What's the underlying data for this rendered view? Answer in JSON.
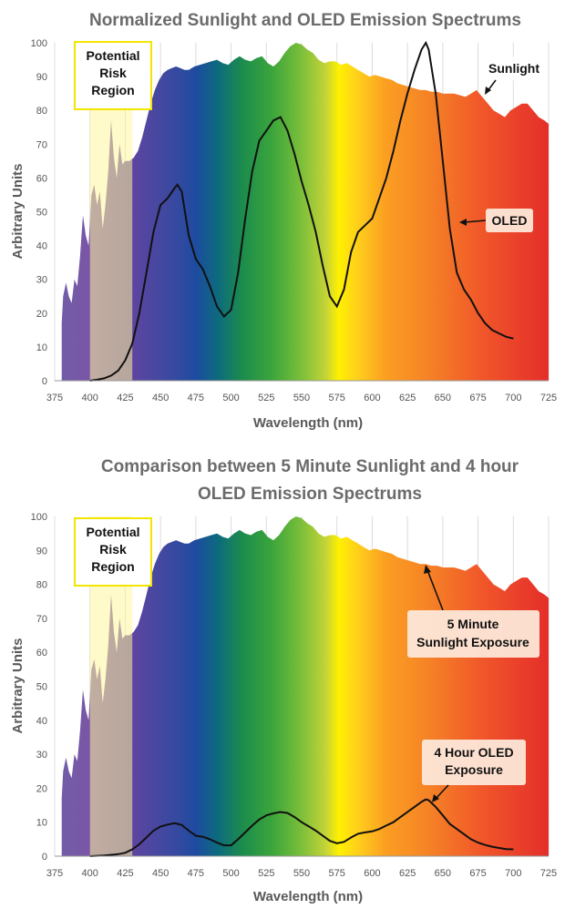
{
  "chart_data": [
    {
      "type": "area",
      "title": "Normalized Sunlight and OLED Emission Spectrums",
      "xlabel": "Wavelength (nm)",
      "ylabel": "Arbitrary Units",
      "xlim": [
        375,
        725
      ],
      "ylim": [
        0,
        100
      ],
      "xticks": [
        375,
        400,
        425,
        450,
        475,
        500,
        525,
        550,
        575,
        600,
        625,
        650,
        675,
        700,
        725
      ],
      "yticks": [
        0,
        10,
        20,
        30,
        40,
        50,
        60,
        70,
        80,
        90,
        100
      ],
      "grid": "vertical",
      "region_label": "Potential Risk Region",
      "region": [
        400,
        430
      ],
      "series": [
        {
          "name": "Sunlight",
          "x": [
            380,
            381,
            383,
            385,
            387,
            389,
            391,
            393,
            395,
            397,
            399,
            401,
            403,
            405,
            407,
            409,
            411,
            413,
            415,
            417,
            419,
            421,
            423,
            425,
            428,
            431,
            434,
            437,
            440,
            443,
            446,
            449,
            452,
            455,
            458,
            461,
            464,
            467,
            470,
            474,
            478,
            482,
            486,
            490,
            494,
            498,
            502,
            506,
            510,
            514,
            518,
            522,
            526,
            530,
            534,
            538,
            542,
            546,
            550,
            554,
            558,
            562,
            566,
            570,
            574,
            578,
            582,
            586,
            590,
            594,
            598,
            602,
            606,
            610,
            614,
            618,
            622,
            626,
            630,
            634,
            638,
            642,
            646,
            650,
            654,
            658,
            662,
            666,
            670,
            674,
            678,
            682,
            686,
            690,
            694,
            698,
            702,
            706,
            710,
            714,
            718,
            722,
            725
          ],
          "y": [
            17,
            25,
            29,
            25,
            23,
            30,
            28,
            37,
            49,
            43,
            40,
            55,
            58,
            52,
            56,
            45,
            52,
            62,
            77,
            66,
            60,
            70,
            64,
            65,
            65,
            66,
            68,
            72,
            77,
            82,
            86,
            89,
            91,
            92,
            92.5,
            93,
            92.5,
            92,
            92,
            93,
            93.5,
            94,
            94.5,
            95,
            94,
            93.5,
            95,
            96,
            95,
            94.5,
            95.5,
            96,
            94,
            93,
            94.5,
            97,
            99,
            100,
            99.5,
            98,
            97,
            95,
            94,
            94.5,
            94.5,
            93.5,
            94,
            93,
            92,
            91,
            90,
            90.5,
            90,
            89.5,
            89,
            88,
            87.5,
            87,
            86.5,
            86,
            86,
            85.5,
            85.5,
            85,
            85,
            85,
            84.5,
            84,
            85,
            86,
            84,
            82,
            80,
            79,
            78,
            80,
            81,
            82,
            82,
            80,
            78,
            77,
            76
          ]
        },
        {
          "name": "OLED",
          "x": [
            400,
            405,
            410,
            415,
            420,
            425,
            430,
            435,
            440,
            445,
            450,
            455,
            460,
            462,
            465,
            470,
            475,
            480,
            485,
            490,
            495,
            500,
            505,
            510,
            515,
            520,
            525,
            530,
            535,
            540,
            545,
            550,
            555,
            560,
            565,
            570,
            575,
            580,
            585,
            590,
            595,
            600,
            605,
            610,
            615,
            620,
            625,
            630,
            635,
            638,
            640,
            645,
            650,
            655,
            660,
            665,
            670,
            675,
            680,
            685,
            690,
            695,
            700
          ],
          "y": [
            0,
            0.3,
            0.7,
            1.5,
            3,
            6,
            11,
            20,
            32,
            44,
            52,
            54,
            57,
            58,
            56,
            43,
            36,
            33,
            28,
            22,
            19,
            21,
            32,
            48,
            62,
            71,
            74,
            77,
            78,
            74,
            67,
            59,
            52,
            44,
            34,
            25,
            22,
            27,
            38,
            44,
            46,
            48,
            54,
            60,
            68,
            77,
            85,
            92,
            98,
            100,
            98,
            85,
            65,
            45,
            32,
            27,
            24,
            20,
            17,
            15,
            14,
            13,
            12.5
          ]
        }
      ]
    },
    {
      "type": "area",
      "title": "Comparison between 5 Minute Sunlight and 4 hour OLED Emission Spectrums",
      "title_lines": [
        "Comparison between 5 Minute Sunlight and 4 hour",
        "OLED Emission Spectrums"
      ],
      "xlabel": "Wavelength (nm)",
      "ylabel": "Arbitrary Units",
      "xlim": [
        375,
        725
      ],
      "ylim": [
        0,
        100
      ],
      "xticks": [
        375,
        400,
        425,
        450,
        475,
        500,
        525,
        550,
        575,
        600,
        625,
        650,
        675,
        700,
        725
      ],
      "yticks": [
        0,
        10,
        20,
        30,
        40,
        50,
        60,
        70,
        80,
        90,
        100
      ],
      "grid": "vertical",
      "region_label": "Potential Risk Region",
      "region": [
        400,
        430
      ],
      "series": [
        {
          "name": "5 Minute Sunlight Exposure",
          "x": [
            380,
            381,
            383,
            385,
            387,
            389,
            391,
            393,
            395,
            397,
            399,
            401,
            403,
            405,
            407,
            409,
            411,
            413,
            415,
            417,
            419,
            421,
            423,
            425,
            428,
            431,
            434,
            437,
            440,
            443,
            446,
            449,
            452,
            455,
            458,
            461,
            464,
            467,
            470,
            474,
            478,
            482,
            486,
            490,
            494,
            498,
            502,
            506,
            510,
            514,
            518,
            522,
            526,
            530,
            534,
            538,
            542,
            546,
            550,
            554,
            558,
            562,
            566,
            570,
            574,
            578,
            582,
            586,
            590,
            594,
            598,
            602,
            606,
            610,
            614,
            618,
            622,
            626,
            630,
            634,
            638,
            642,
            646,
            650,
            654,
            658,
            662,
            666,
            670,
            674,
            678,
            682,
            686,
            690,
            694,
            698,
            702,
            706,
            710,
            714,
            718,
            722,
            725
          ],
          "y": [
            17,
            25,
            29,
            25,
            23,
            30,
            28,
            37,
            49,
            43,
            40,
            55,
            58,
            52,
            56,
            45,
            52,
            62,
            77,
            66,
            60,
            70,
            64,
            65,
            65,
            66,
            68,
            72,
            77,
            82,
            86,
            89,
            91,
            92,
            92.5,
            93,
            92.5,
            92,
            92,
            93,
            93.5,
            94,
            94.5,
            95,
            94,
            93.5,
            95,
            96,
            95,
            94.5,
            95.5,
            96,
            94,
            93,
            94.5,
            97,
            99,
            100,
            99.5,
            98,
            97,
            95,
            94,
            94.5,
            94.5,
            93.5,
            94,
            93,
            92,
            91,
            90,
            90.5,
            90,
            89.5,
            89,
            88,
            87.5,
            87,
            86.5,
            86,
            86,
            85.5,
            85.5,
            85,
            85,
            85,
            84.5,
            84,
            85,
            86,
            84,
            82,
            80,
            79,
            78,
            80,
            81,
            82,
            82,
            80,
            78,
            77,
            76
          ]
        },
        {
          "name": "4 Hour OLED Exposure",
          "x": [
            400,
            410,
            420,
            425,
            430,
            435,
            440,
            445,
            450,
            455,
            460,
            465,
            470,
            475,
            480,
            485,
            490,
            495,
            500,
            505,
            510,
            515,
            520,
            525,
            530,
            535,
            540,
            545,
            550,
            555,
            560,
            565,
            570,
            575,
            580,
            585,
            590,
            595,
            600,
            605,
            610,
            615,
            620,
            625,
            630,
            635,
            638,
            640,
            645,
            650,
            655,
            660,
            665,
            670,
            675,
            680,
            685,
            690,
            695,
            700
          ],
          "y": [
            0,
            0.2,
            0.6,
            1,
            2,
            3.5,
            5.5,
            7.5,
            8.7,
            9.3,
            9.7,
            9.2,
            7.5,
            6,
            5.7,
            5,
            4,
            3.2,
            3.2,
            5,
            7,
            9,
            10.8,
            12,
            12.6,
            13,
            12.7,
            11.5,
            10,
            8.8,
            7.5,
            6,
            4.5,
            3.8,
            4.2,
            5.5,
            6.6,
            7,
            7.3,
            8,
            9,
            10,
            11.5,
            13,
            14.5,
            16,
            16.7,
            16.5,
            14.5,
            12,
            9.5,
            8,
            6.5,
            5,
            4,
            3.3,
            2.8,
            2.4,
            2.1,
            2
          ]
        }
      ]
    }
  ]
}
